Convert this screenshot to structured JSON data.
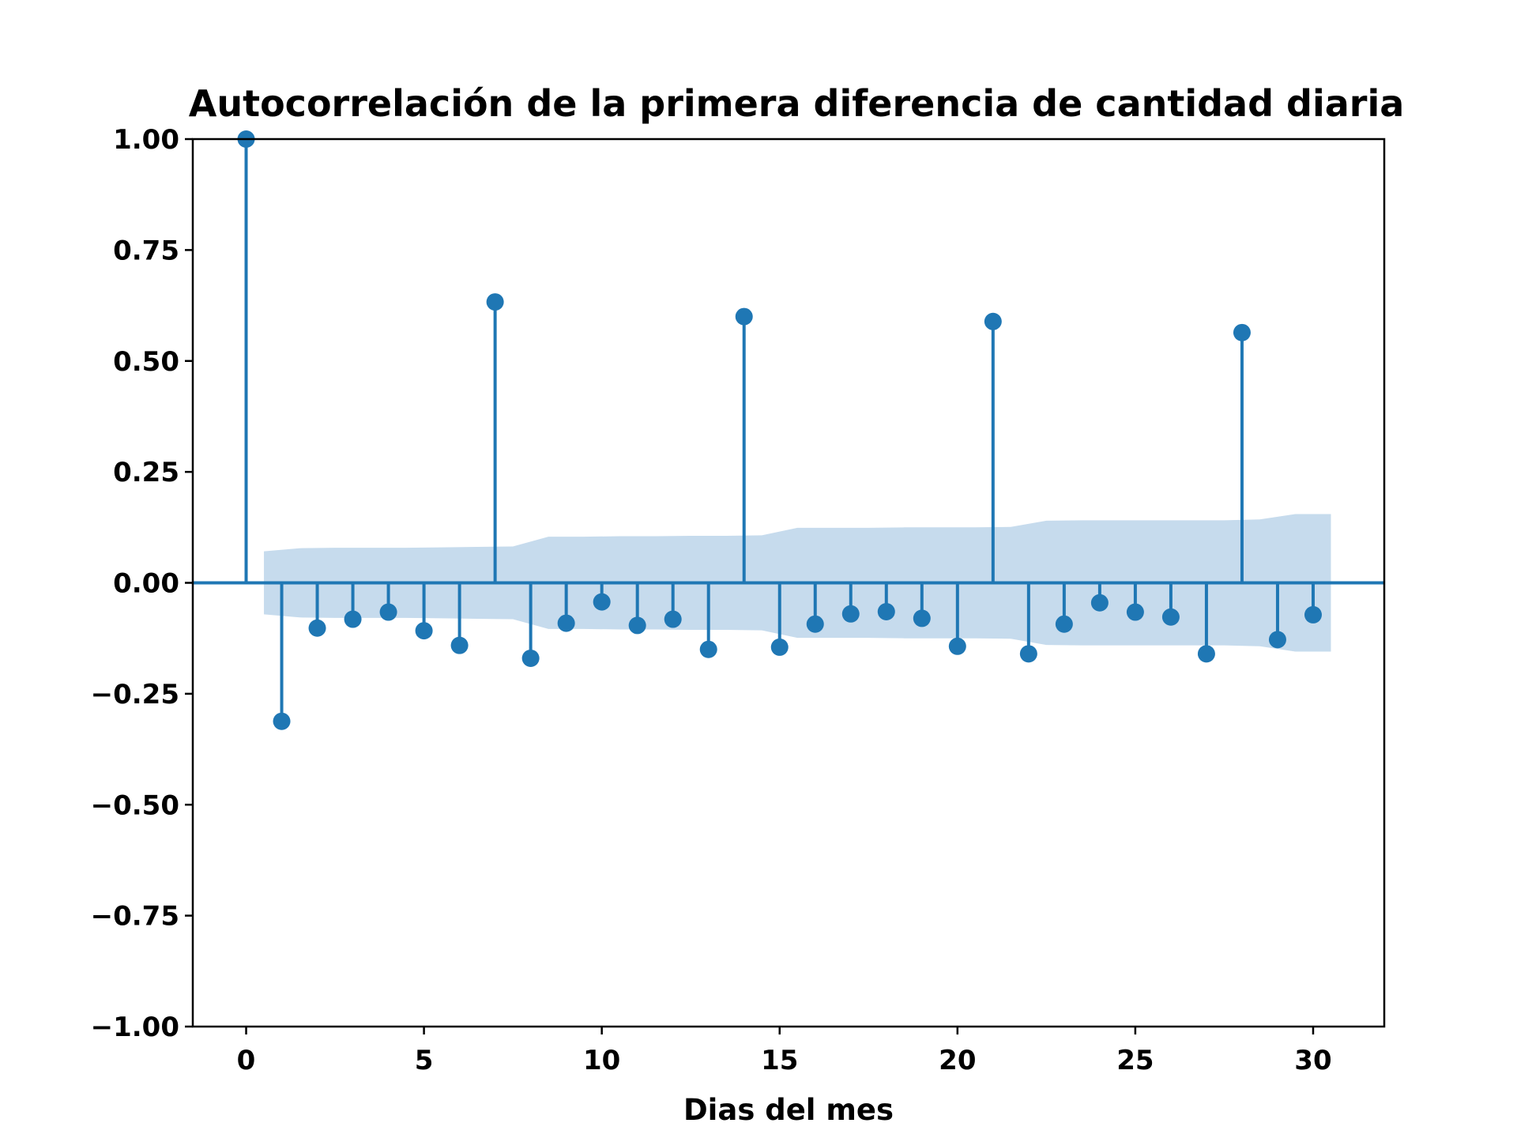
{
  "chart_data": {
    "type": "stem",
    "title": "Autocorrelación de la primera diferencia de cantidad diaria",
    "xlabel": "Dias del mes",
    "ylabel": "",
    "xlim": [
      -1.5,
      32
    ],
    "ylim": [
      -1.0,
      1.0
    ],
    "xticks": [
      0,
      5,
      10,
      15,
      20,
      25,
      30
    ],
    "xtick_labels": [
      "0",
      "5",
      "10",
      "15",
      "20",
      "25",
      "30"
    ],
    "yticks": [
      1.0,
      0.75,
      0.5,
      0.25,
      0.0,
      -0.25,
      -0.5,
      -0.75,
      -1.0
    ],
    "ytick_labels": [
      "1.00",
      "0.75",
      "0.50",
      "0.25",
      "0.00",
      "−0.25",
      "−0.50",
      "−0.75",
      "−1.00"
    ],
    "grid": false,
    "colors": {
      "stem": "#1f77b4",
      "confidence_band": "#c6dbed"
    },
    "series": [
      {
        "lags": [
          0,
          1,
          2,
          3,
          4,
          5,
          6,
          7,
          8,
          9,
          10,
          11,
          12,
          13,
          14,
          15,
          16,
          17,
          18,
          19,
          20,
          21,
          22,
          23,
          24,
          25,
          26,
          27,
          28,
          29,
          30
        ],
        "values": [
          1.0,
          -0.312,
          -0.102,
          -0.082,
          -0.066,
          -0.108,
          -0.141,
          0.633,
          -0.17,
          -0.091,
          -0.043,
          -0.096,
          -0.082,
          -0.15,
          0.6,
          -0.145,
          -0.093,
          -0.07,
          -0.065,
          -0.08,
          -0.143,
          0.589,
          -0.16,
          -0.093,
          -0.045,
          -0.066,
          -0.077,
          -0.16,
          0.564,
          -0.128,
          -0.072
        ]
      }
    ],
    "confidence_band": {
      "x": [
        0.5,
        1.5,
        2.5,
        3.5,
        4.5,
        5.5,
        6.5,
        7.5,
        8.5,
        9.5,
        10.5,
        11.5,
        12.5,
        13.5,
        14.5,
        15.5,
        16.5,
        17.5,
        18.5,
        19.5,
        20.5,
        21.5,
        22.5,
        23.5,
        24.5,
        25.5,
        26.5,
        27.5,
        28.5,
        29.5,
        30.5
      ],
      "upper": [
        0.071,
        0.078,
        0.079,
        0.079,
        0.079,
        0.08,
        0.081,
        0.082,
        0.104,
        0.104,
        0.105,
        0.105,
        0.106,
        0.106,
        0.107,
        0.124,
        0.124,
        0.124,
        0.125,
        0.125,
        0.125,
        0.126,
        0.14,
        0.141,
        0.141,
        0.141,
        0.141,
        0.141,
        0.143,
        0.155,
        0.155
      ]
    }
  }
}
